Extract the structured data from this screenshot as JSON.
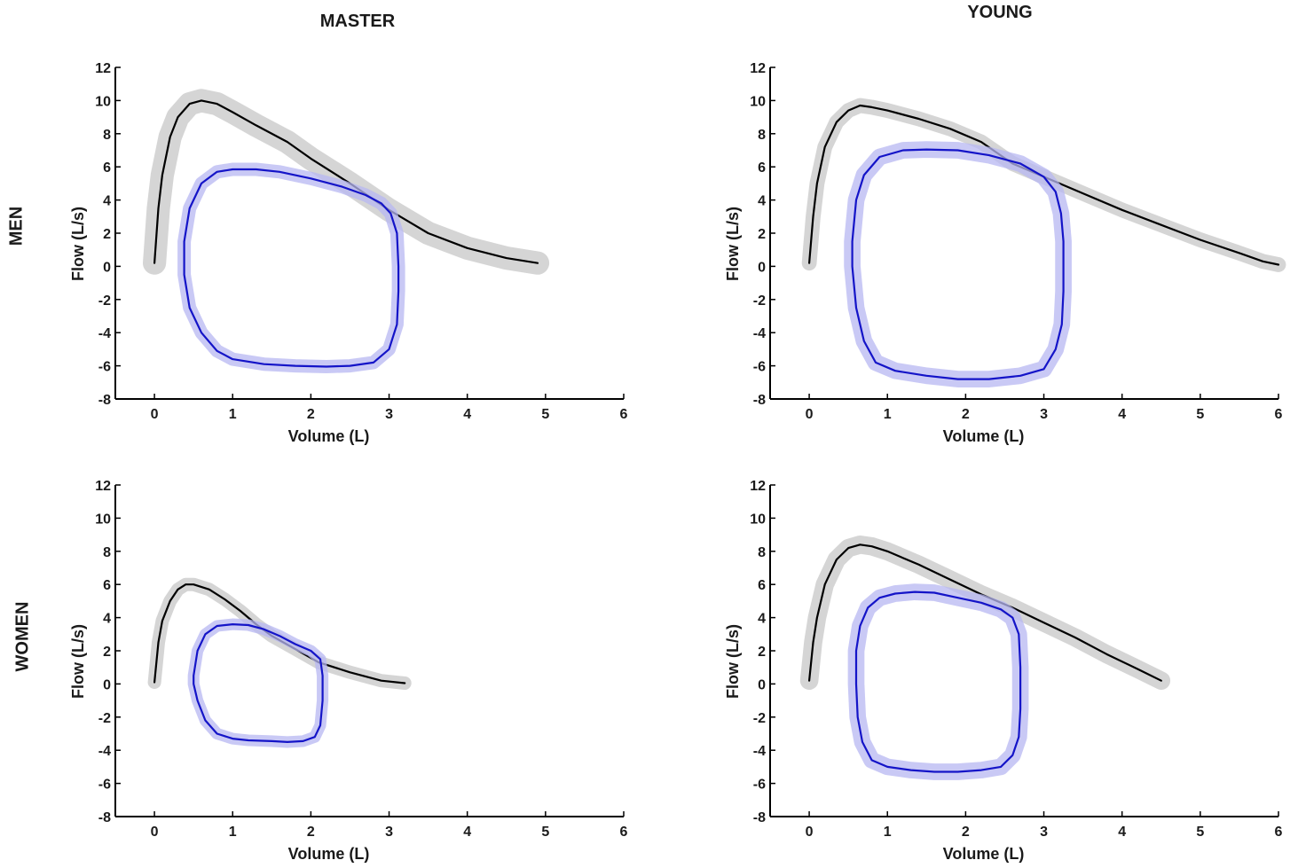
{
  "column_titles": [
    "MASTER",
    "YOUNG"
  ],
  "row_titles": [
    "MEN",
    "WOMEN"
  ],
  "colors": {
    "expiratory_line": "#000000",
    "expiratory_band": "#d3d3d3",
    "loop_line": "#1414c8",
    "loop_band": "#b7b7f2"
  },
  "chart_data": [
    {
      "type": "line",
      "panel": "MEN / MASTER",
      "xlabel": "Volume (L)",
      "ylabel": "Flow (L/s)",
      "xlim": [
        -0.5,
        6
      ],
      "ylim": [
        -8,
        12
      ],
      "xticks": [
        0,
        1,
        2,
        3,
        4,
        5,
        6
      ],
      "yticks": [
        -8,
        -6,
        -4,
        -2,
        0,
        2,
        4,
        6,
        8,
        10,
        12
      ],
      "series": [
        {
          "kind": "max-flow-volume-curve",
          "band_width": 1.4,
          "x": [
            0,
            0.05,
            0.1,
            0.2,
            0.3,
            0.45,
            0.6,
            0.8,
            1.0,
            1.3,
            1.7,
            2.0,
            2.5,
            3.0,
            3.5,
            4.0,
            4.5,
            4.9
          ],
          "y": [
            0.2,
            3.5,
            5.5,
            7.8,
            9.0,
            9.8,
            10.0,
            9.8,
            9.3,
            8.5,
            7.5,
            6.5,
            5.0,
            3.4,
            2.0,
            1.1,
            0.5,
            0.2
          ]
        },
        {
          "kind": "tidal-flow-volume-loop",
          "band_width": 0.8,
          "x": [
            0.38,
            0.45,
            0.6,
            0.8,
            1.0,
            1.3,
            1.6,
            2.0,
            2.4,
            2.7,
            2.9,
            3.02,
            3.1,
            3.12,
            3.12,
            3.1,
            3.0,
            2.8,
            2.5,
            2.2,
            1.8,
            1.4,
            1.0,
            0.8,
            0.6,
            0.45,
            0.38
          ],
          "y": [
            1.5,
            3.5,
            5.0,
            5.7,
            5.85,
            5.85,
            5.7,
            5.3,
            4.8,
            4.3,
            3.8,
            3.2,
            2.0,
            0.0,
            -1.5,
            -3.5,
            -5.0,
            -5.8,
            -6.0,
            -6.05,
            -6.0,
            -5.9,
            -5.6,
            -5.1,
            -4.0,
            -2.5,
            -0.5
          ]
        }
      ]
    },
    {
      "type": "line",
      "panel": "MEN / YOUNG",
      "xlabel": "Volume (L)",
      "ylabel": "Flow (L/s)",
      "xlim": [
        -0.5,
        6
      ],
      "ylim": [
        -8,
        12
      ],
      "xticks": [
        0,
        1,
        2,
        3,
        4,
        5,
        6
      ],
      "yticks": [
        -8,
        -6,
        -4,
        -2,
        0,
        2,
        4,
        6,
        8,
        10,
        12
      ],
      "series": [
        {
          "kind": "max-flow-volume-curve",
          "band_width": 0.9,
          "x": [
            0,
            0.05,
            0.1,
            0.2,
            0.35,
            0.5,
            0.65,
            0.8,
            1.0,
            1.4,
            1.8,
            2.2,
            2.6,
            3.0,
            3.5,
            4.0,
            4.5,
            5.0,
            5.5,
            5.8,
            6.0
          ],
          "y": [
            0.2,
            3.0,
            5.0,
            7.2,
            8.7,
            9.4,
            9.7,
            9.6,
            9.4,
            8.9,
            8.3,
            7.5,
            6.2,
            5.4,
            4.4,
            3.4,
            2.5,
            1.6,
            0.8,
            0.3,
            0.1
          ]
        },
        {
          "kind": "tidal-flow-volume-loop",
          "band_width": 1.0,
          "x": [
            0.55,
            0.6,
            0.7,
            0.9,
            1.2,
            1.5,
            1.9,
            2.3,
            2.7,
            3.0,
            3.15,
            3.22,
            3.25,
            3.25,
            3.23,
            3.15,
            3.0,
            2.7,
            2.3,
            1.9,
            1.5,
            1.1,
            0.85,
            0.7,
            0.6,
            0.55
          ],
          "y": [
            1.5,
            4.0,
            5.5,
            6.6,
            7.0,
            7.05,
            7.0,
            6.7,
            6.2,
            5.4,
            4.5,
            3.2,
            1.5,
            -1.5,
            -3.5,
            -5.0,
            -6.2,
            -6.6,
            -6.8,
            -6.8,
            -6.6,
            -6.3,
            -5.8,
            -4.5,
            -2.5,
            0.0
          ]
        }
      ]
    },
    {
      "type": "line",
      "panel": "WOMEN / MASTER",
      "xlabel": "Volume (L)",
      "ylabel": "Flow (L/s)",
      "xlim": [
        -0.5,
        6
      ],
      "ylim": [
        -8,
        12
      ],
      "xticks": [
        0,
        1,
        2,
        3,
        4,
        5,
        6
      ],
      "yticks": [
        -8,
        -6,
        -4,
        -2,
        0,
        2,
        4,
        6,
        8,
        10,
        12
      ],
      "series": [
        {
          "kind": "max-flow-volume-curve",
          "band_width": 0.8,
          "x": [
            0,
            0.05,
            0.1,
            0.2,
            0.3,
            0.4,
            0.5,
            0.7,
            0.9,
            1.1,
            1.3,
            1.5,
            1.8,
            2.1,
            2.5,
            2.9,
            3.2
          ],
          "y": [
            0.1,
            2.5,
            3.8,
            5.0,
            5.7,
            6.0,
            6.0,
            5.7,
            5.1,
            4.4,
            3.6,
            2.9,
            2.1,
            1.3,
            0.7,
            0.2,
            0.05
          ]
        },
        {
          "kind": "tidal-flow-volume-loop",
          "band_width": 0.7,
          "x": [
            0.5,
            0.55,
            0.65,
            0.8,
            1.0,
            1.2,
            1.4,
            1.6,
            1.8,
            2.0,
            2.12,
            2.15,
            2.15,
            2.12,
            2.05,
            1.9,
            1.7,
            1.5,
            1.2,
            1.0,
            0.8,
            0.65,
            0.55,
            0.5
          ],
          "y": [
            0.5,
            2.0,
            3.0,
            3.5,
            3.6,
            3.55,
            3.3,
            2.9,
            2.4,
            2.0,
            1.5,
            0.5,
            -1.0,
            -2.5,
            -3.2,
            -3.45,
            -3.5,
            -3.45,
            -3.4,
            -3.3,
            -3.0,
            -2.2,
            -1.0,
            0.0
          ]
        }
      ]
    },
    {
      "type": "line",
      "panel": "WOMEN / YOUNG",
      "xlabel": "Volume (L)",
      "ylabel": "Flow (L/s)",
      "xlim": [
        -0.5,
        6
      ],
      "ylim": [
        -8,
        12
      ],
      "xticks": [
        0,
        1,
        2,
        3,
        4,
        5,
        6
      ],
      "yticks": [
        -8,
        -6,
        -4,
        -2,
        0,
        2,
        4,
        6,
        8,
        10,
        12
      ],
      "series": [
        {
          "kind": "max-flow-volume-curve",
          "band_width": 1.1,
          "x": [
            0,
            0.05,
            0.1,
            0.2,
            0.35,
            0.5,
            0.65,
            0.8,
            1.0,
            1.4,
            1.8,
            2.2,
            2.6,
            3.0,
            3.4,
            3.8,
            4.2,
            4.5
          ],
          "y": [
            0.2,
            2.5,
            4.0,
            6.0,
            7.5,
            8.2,
            8.4,
            8.3,
            8.0,
            7.2,
            6.3,
            5.4,
            4.6,
            3.7,
            2.8,
            1.8,
            0.9,
            0.2
          ]
        },
        {
          "kind": "tidal-flow-volume-loop",
          "band_width": 1.0,
          "x": [
            0.6,
            0.65,
            0.75,
            0.9,
            1.1,
            1.35,
            1.6,
            1.9,
            2.2,
            2.45,
            2.6,
            2.68,
            2.7,
            2.7,
            2.68,
            2.6,
            2.45,
            2.2,
            1.9,
            1.6,
            1.3,
            1.0,
            0.8,
            0.68,
            0.62,
            0.6
          ],
          "y": [
            2.0,
            3.5,
            4.6,
            5.2,
            5.45,
            5.55,
            5.5,
            5.2,
            4.9,
            4.5,
            4.0,
            3.0,
            1.0,
            -1.5,
            -3.2,
            -4.3,
            -5.0,
            -5.2,
            -5.3,
            -5.3,
            -5.2,
            -5.0,
            -4.6,
            -3.5,
            -2.0,
            0.0
          ]
        }
      ]
    }
  ]
}
